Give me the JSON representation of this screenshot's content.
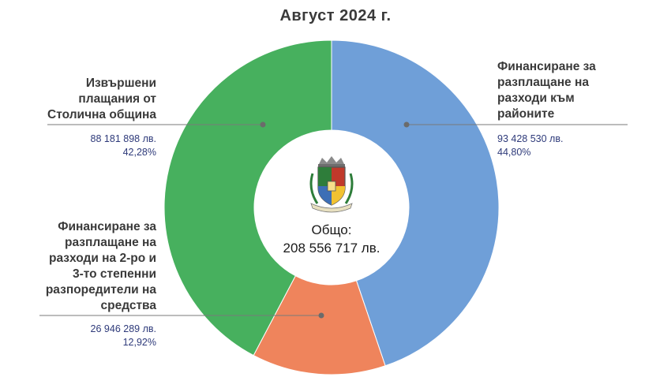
{
  "title": "Август  2024 г.",
  "chart_data": {
    "type": "pie",
    "title": "Август  2024 г.",
    "center_label": "Общо:",
    "center_value": "208 556 717 лв.",
    "total": 208556717,
    "slices": [
      {
        "label": "Финансиране за разплащане на разходи към районите",
        "amount_text": "93 428 530 лв.",
        "percent_text": "44,80%",
        "value": 93428530,
        "percent": 44.8,
        "color": "#6f9fd8"
      },
      {
        "label": "Финансиране за разплащане на разходи на 2-ро и 3-то степенни разпоредители на средства",
        "amount_text": "26 946 289 лв.",
        "percent_text": "12,92%",
        "value": 26946289,
        "percent": 12.92,
        "color": "#ef845c"
      },
      {
        "label": "Извършени плащания от Столична община",
        "amount_text": "88 181 898 лв.",
        "percent_text": "42,28%",
        "value": 88181898,
        "percent": 42.28,
        "color": "#47b05e"
      }
    ]
  },
  "labels": {
    "right_top": [
      "Финансиране за",
      "разплащане на",
      "разходи към",
      "районите"
    ],
    "left_top": [
      "Извършени",
      "плащания от",
      "Столична община"
    ],
    "left_bottom": [
      "Финансиране за",
      "разплащане на",
      "разходи на 2-ро и",
      "3-то степенни",
      "разпоредители на",
      "средства"
    ]
  },
  "logo": {
    "name": "sofia-coat-of-arms"
  }
}
